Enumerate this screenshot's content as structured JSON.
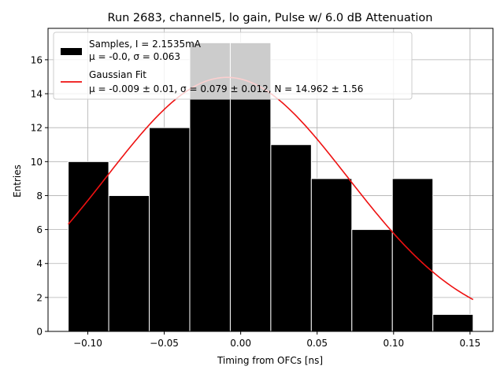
{
  "chart_data": {
    "type": "bar",
    "title": "Run 2683, channel5, lo gain, Pulse w/ 6.0 dB Attenuation",
    "xlabel": "Timing from OFCs [ns]",
    "ylabel": "Entries",
    "xlim": [
      -0.126,
      0.165
    ],
    "ylim": [
      0,
      17.85
    ],
    "grid": true,
    "legend_position": "top-left",
    "x_ticks": [
      -0.1,
      -0.05,
      0.0,
      0.05,
      0.1,
      0.15
    ],
    "x_tick_labels": [
      "−0.10",
      "−0.05",
      "0.00",
      "0.05",
      "0.10",
      "0.15"
    ],
    "y_ticks": [
      0,
      2,
      4,
      6,
      8,
      10,
      12,
      14,
      16
    ],
    "y_tick_labels": [
      "0",
      "2",
      "4",
      "6",
      "8",
      "10",
      "12",
      "14",
      "16"
    ],
    "histogram": {
      "name": "Samples",
      "bin_edges": [
        -0.1128,
        -0.0863,
        -0.0598,
        -0.0333,
        -0.0068,
        0.0197,
        0.0462,
        0.0727,
        0.0992,
        0.1257,
        0.152
      ],
      "counts": [
        10,
        8,
        12,
        17,
        17,
        11,
        9,
        6,
        9,
        1
      ],
      "color": "#000000",
      "edge_color": "#ffffff"
    },
    "fit": {
      "name": "Gaussian Fit",
      "type": "line",
      "mu": -0.009,
      "sigma": 0.079,
      "N": 14.962,
      "x_range": [
        -0.1128,
        0.152
      ],
      "color": "#ee1111"
    },
    "legend": [
      {
        "label": "Samples, I = 2.1535mA",
        "stats": "μ = -0.0, σ = 0.063",
        "swatch": "box",
        "color": "#000000"
      },
      {
        "label": "Gaussian Fit",
        "stats": "μ = -0.009 ± 0.01, σ = 0.079 ± 0.012, N = 14.962 ± 1.56",
        "swatch": "line",
        "color": "#ee1111"
      }
    ]
  }
}
